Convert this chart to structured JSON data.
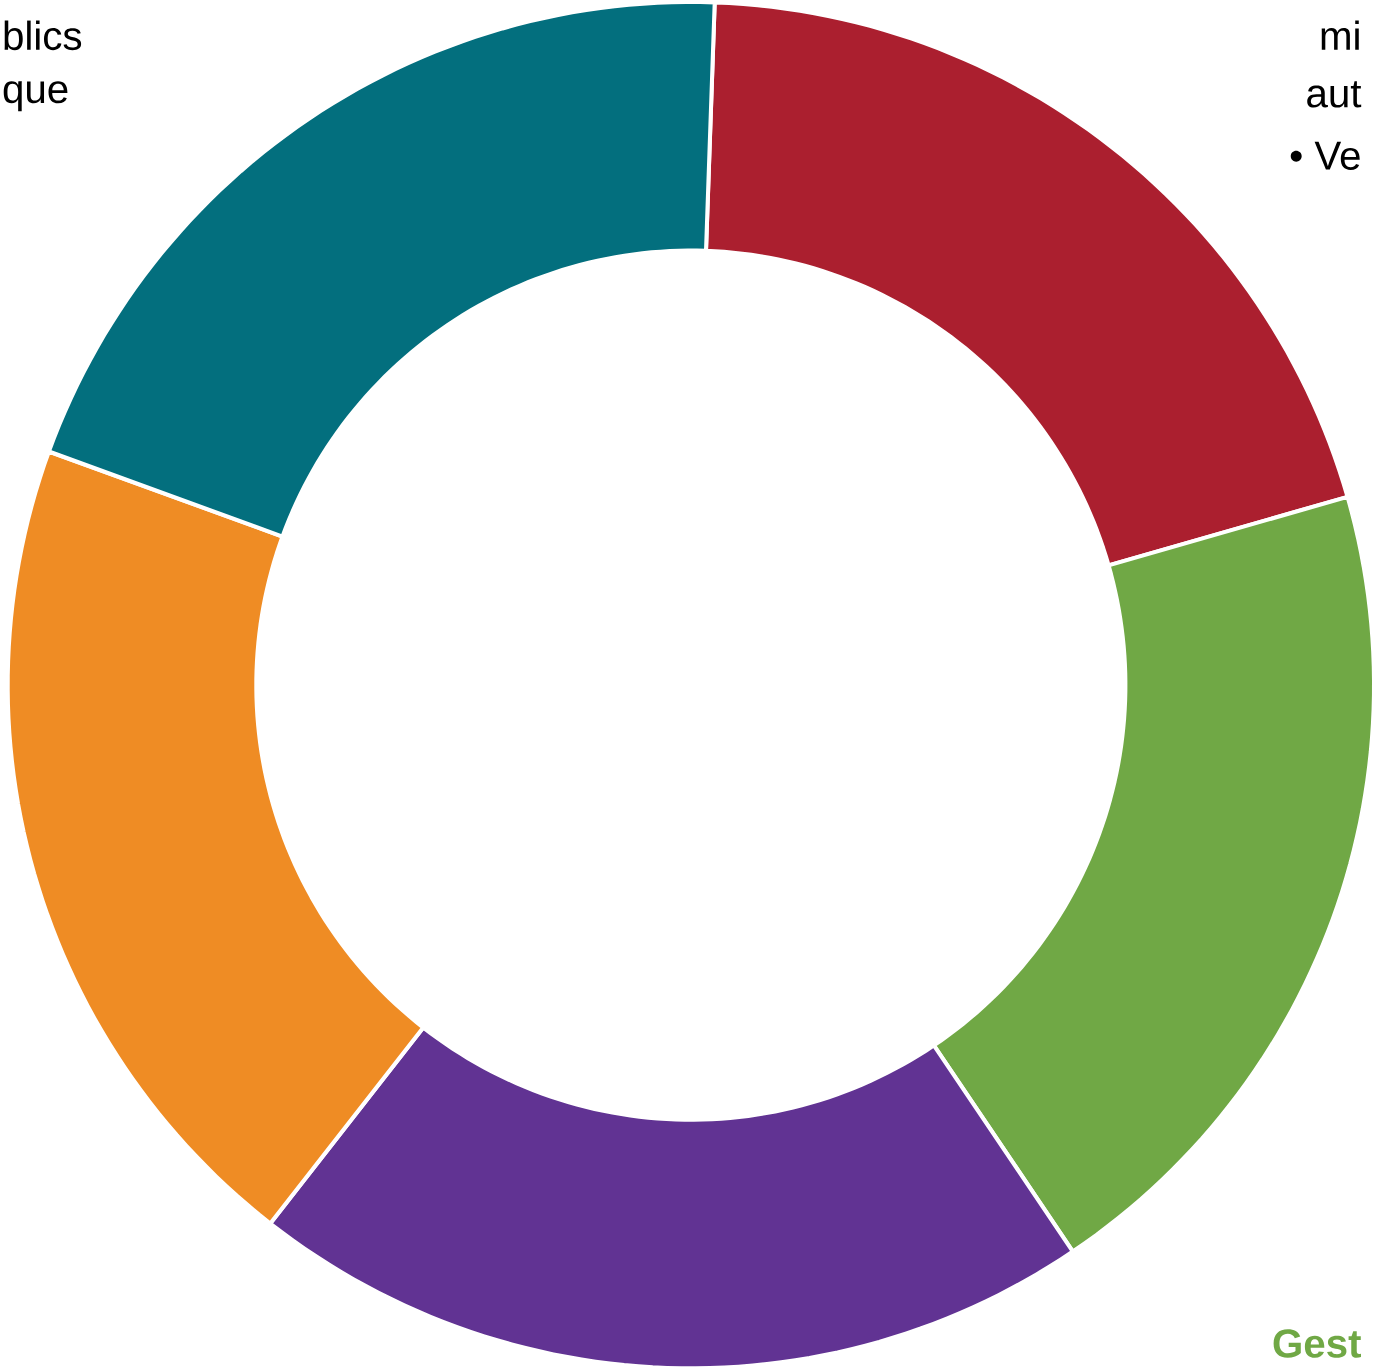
{
  "chart_data": {
    "type": "donut",
    "categories": [
      null,
      null,
      null,
      null,
      null
    ],
    "values": [
      20,
      20,
      20,
      20,
      20
    ],
    "colors": [
      "#ab1f2f",
      "#70a845",
      "#613393",
      "#ef8c24",
      "#036f7e"
    ],
    "annotations": [
      "blics",
      "que",
      "mi",
      "aut",
      "• Ve",
      "Gest"
    ]
  }
}
